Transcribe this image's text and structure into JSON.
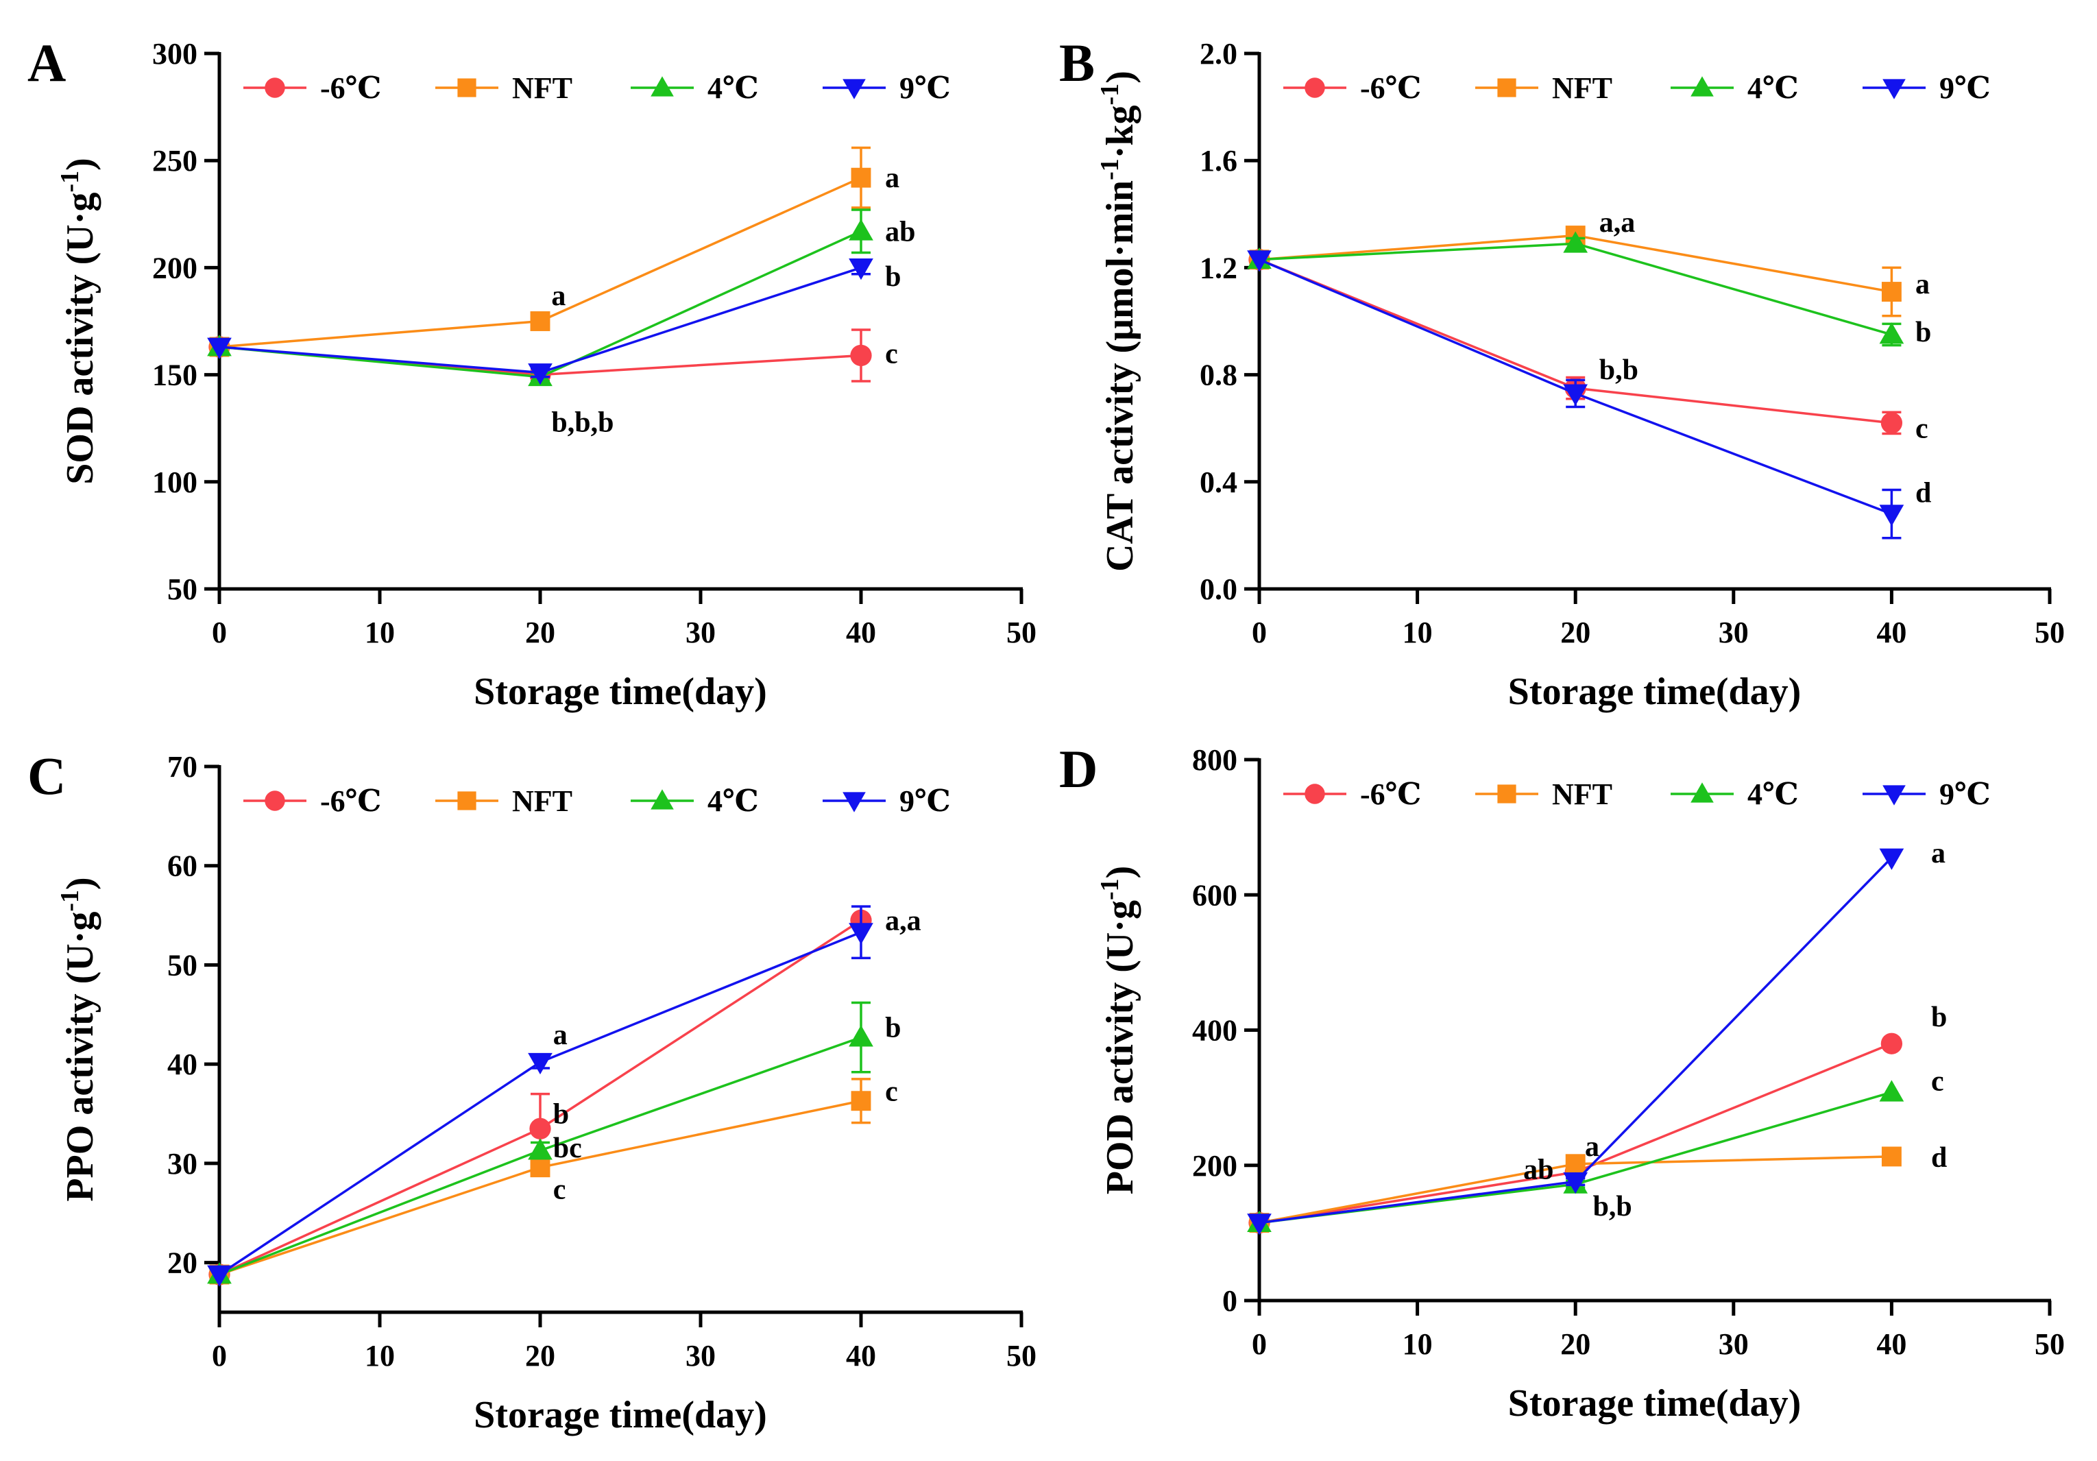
{
  "colors": {
    "-6℃": "#f8424c",
    "NFT": "#fb8c17",
    "4℃": "#1dc21d",
    "9℃": "#1212ee"
  },
  "markers": {
    "-6℃": "circle",
    "NFT": "square",
    "4℃": "triangle-up",
    "9℃": "triangle-down"
  },
  "chart_data": [
    {
      "panel_label": "A",
      "type": "line",
      "xlabel": "Storage time(day)",
      "ylabel": "SOD activity (U·g",
      "ylabel_sup": "-1",
      "ylabel_close": ")",
      "xlim": [
        0,
        50
      ],
      "ylim": [
        50,
        300
      ],
      "x_ticks": [
        0,
        10,
        20,
        30,
        40,
        50
      ],
      "x_tick_labels": [
        "0",
        "10",
        "20",
        "30",
        "40",
        "50"
      ],
      "y_ticks": [
        50,
        100,
        150,
        200,
        250,
        300
      ],
      "y_tick_labels": [
        "50",
        "100",
        "150",
        "200",
        "250",
        "300"
      ],
      "legend": [
        "-6℃",
        "NFT",
        "4℃",
        "9℃"
      ],
      "series": [
        {
          "name": "-6℃",
          "x": [
            0,
            20,
            40
          ],
          "y": [
            163,
            150,
            159
          ],
          "err": [
            0,
            3,
            12
          ]
        },
        {
          "name": "NFT",
          "x": [
            0,
            20,
            40
          ],
          "y": [
            163,
            175,
            242
          ],
          "err": [
            0,
            2,
            14
          ]
        },
        {
          "name": "4℃",
          "x": [
            0,
            20,
            40
          ],
          "y": [
            163,
            149,
            217
          ],
          "err": [
            0,
            2,
            10
          ]
        },
        {
          "name": "9℃",
          "x": [
            0,
            20,
            40
          ],
          "y": [
            163,
            151,
            200
          ],
          "err": [
            0,
            2,
            3
          ]
        }
      ],
      "annotations": [
        {
          "text": "a",
          "x": 20.7,
          "y": 187
        },
        {
          "text": "b,b,b",
          "x": 20.7,
          "y": 128
        },
        {
          "text": "a",
          "x": 41.5,
          "y": 242
        },
        {
          "text": "ab",
          "x": 41.5,
          "y": 217
        },
        {
          "text": "b",
          "x": 41.5,
          "y": 196
        },
        {
          "text": "c",
          "x": 41.5,
          "y": 160
        }
      ]
    },
    {
      "panel_label": "B",
      "type": "line",
      "xlabel": "Storage time(day)",
      "ylabel": "CAT activity (μmol·min",
      "ylabel_sup": "-1",
      "ylabel_mid": "·kg",
      "ylabel_sup2": "-1",
      "ylabel_close": ")",
      "xlim": [
        0,
        50
      ],
      "ylim": [
        0,
        2
      ],
      "x_ticks": [
        0,
        10,
        20,
        30,
        40,
        50
      ],
      "x_tick_labels": [
        "0",
        "10",
        "20",
        "30",
        "40",
        "50"
      ],
      "y_ticks": [
        0,
        0.4,
        0.8,
        1.2,
        1.6,
        2.0
      ],
      "y_tick_labels": [
        "0.0",
        "0.4",
        "0.8",
        "1.2",
        "1.6",
        "2.0"
      ],
      "legend": [
        "-6℃",
        "NFT",
        "4℃",
        "9℃"
      ],
      "series": [
        {
          "name": "-6℃",
          "x": [
            0,
            20,
            40
          ],
          "y": [
            1.23,
            0.75,
            0.62
          ],
          "err": [
            0,
            0.04,
            0.04
          ]
        },
        {
          "name": "NFT",
          "x": [
            0,
            20,
            40
          ],
          "y": [
            1.23,
            1.32,
            1.11
          ],
          "err": [
            0,
            0.02,
            0.09
          ]
        },
        {
          "name": "4℃",
          "x": [
            0,
            20,
            40
          ],
          "y": [
            1.23,
            1.29,
            0.95
          ],
          "err": [
            0,
            0.02,
            0.04
          ]
        },
        {
          "name": "9℃",
          "x": [
            0,
            20,
            40
          ],
          "y": [
            1.23,
            0.73,
            0.28
          ],
          "err": [
            0,
            0.05,
            0.09
          ]
        }
      ],
      "annotations": [
        {
          "text": "a,a",
          "x": 21.5,
          "y": 1.37
        },
        {
          "text": "b,b",
          "x": 21.5,
          "y": 0.82
        },
        {
          "text": "a",
          "x": 41.5,
          "y": 1.14
        },
        {
          "text": "b",
          "x": 41.5,
          "y": 0.96
        },
        {
          "text": "c",
          "x": 41.5,
          "y": 0.6
        },
        {
          "text": "d",
          "x": 41.5,
          "y": 0.36
        }
      ]
    },
    {
      "panel_label": "C",
      "type": "line",
      "xlabel": "Storage time(day)",
      "ylabel": "PPO activity (U·g",
      "ylabel_sup": "-1",
      "ylabel_close": ")",
      "xlim": [
        0,
        50
      ],
      "ylim": [
        15,
        70
      ],
      "x_ticks": [
        0,
        10,
        20,
        30,
        40,
        50
      ],
      "x_tick_labels": [
        "0",
        "10",
        "20",
        "30",
        "40",
        "50"
      ],
      "y_ticks": [
        20,
        30,
        40,
        50,
        60,
        70
      ],
      "y_tick_labels": [
        "20",
        "30",
        "40",
        "50",
        "60",
        "70"
      ],
      "legend": [
        "-6℃",
        "NFT",
        "4℃",
        "9℃"
      ],
      "series": [
        {
          "name": "-6℃",
          "x": [
            0,
            20,
            40
          ],
          "y": [
            18.8,
            33.5,
            54.5
          ],
          "err": [
            0,
            3.5,
            0
          ]
        },
        {
          "name": "NFT",
          "x": [
            0,
            20,
            40
          ],
          "y": [
            18.8,
            29.6,
            36.3
          ],
          "err": [
            0,
            0.6,
            2.2
          ]
        },
        {
          "name": "4℃",
          "x": [
            0,
            20,
            40
          ],
          "y": [
            18.8,
            31.3,
            42.7
          ],
          "err": [
            0,
            0.8,
            3.5
          ]
        },
        {
          "name": "9℃",
          "x": [
            0,
            20,
            40
          ],
          "y": [
            18.8,
            40.2,
            53.3
          ],
          "err": [
            0,
            0.6,
            2.6
          ]
        }
      ],
      "annotations": [
        {
          "text": "a",
          "x": 20.8,
          "y": 43
        },
        {
          "text": "b",
          "x": 20.8,
          "y": 35
        },
        {
          "text": "bc",
          "x": 20.8,
          "y": 31.6
        },
        {
          "text": "c",
          "x": 20.8,
          "y": 27.4
        },
        {
          "text": "a,a",
          "x": 41.5,
          "y": 54.5
        },
        {
          "text": "b",
          "x": 41.5,
          "y": 43.7
        },
        {
          "text": "c",
          "x": 41.5,
          "y": 37.3
        }
      ]
    },
    {
      "panel_label": "D",
      "type": "line",
      "xlabel": "Storage time(day)",
      "ylabel": "POD activity (U·g",
      "ylabel_sup": "-1",
      "ylabel_close": ")",
      "xlim": [
        0,
        50
      ],
      "ylim": [
        0,
        800
      ],
      "x_ticks": [
        0,
        10,
        20,
        30,
        40,
        50
      ],
      "x_tick_labels": [
        "0",
        "10",
        "20",
        "30",
        "40",
        "50"
      ],
      "y_ticks": [
        0,
        200,
        400,
        600,
        800
      ],
      "y_tick_labels": [
        "0",
        "200",
        "400",
        "600",
        "800"
      ],
      "legend": [
        "-6℃",
        "NFT",
        "4℃",
        "9℃"
      ],
      "series": [
        {
          "name": "-6℃",
          "x": [
            0,
            20,
            40
          ],
          "y": [
            115,
            190,
            380
          ],
          "err": [
            0,
            8,
            0
          ]
        },
        {
          "name": "NFT",
          "x": [
            0,
            20,
            40
          ],
          "y": [
            115,
            202,
            213
          ],
          "err": [
            0,
            5,
            0
          ]
        },
        {
          "name": "4℃",
          "x": [
            0,
            20,
            40
          ],
          "y": [
            115,
            172,
            308
          ],
          "err": [
            0,
            5,
            0
          ]
        },
        {
          "name": "9℃",
          "x": [
            0,
            20,
            40
          ],
          "y": [
            115,
            176,
            655
          ],
          "err": [
            0,
            5,
            0
          ]
        }
      ],
      "annotations": [
        {
          "text": "a",
          "x": 20.6,
          "y": 228
        },
        {
          "text": "ab",
          "x": 16.7,
          "y": 194
        },
        {
          "text": "b,b",
          "x": 21.1,
          "y": 140
        },
        {
          "text": "a",
          "x": 42.5,
          "y": 662
        },
        {
          "text": "b",
          "x": 42.5,
          "y": 420
        },
        {
          "text": "c",
          "x": 42.5,
          "y": 325
        },
        {
          "text": "d",
          "x": 42.5,
          "y": 212
        }
      ]
    }
  ]
}
